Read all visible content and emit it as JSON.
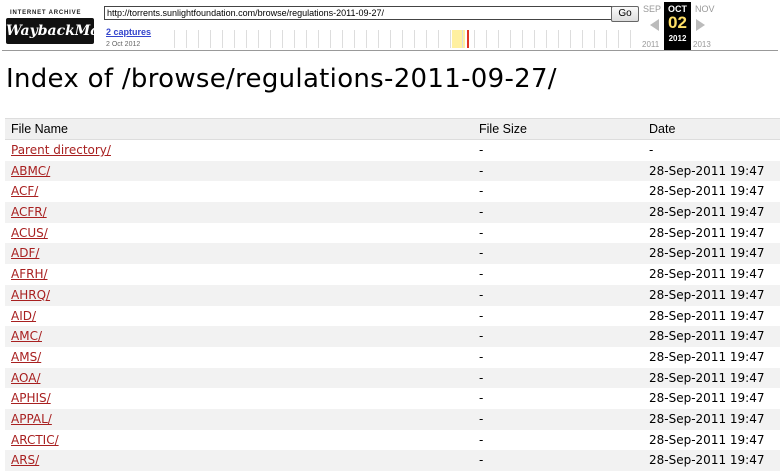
{
  "wayback": {
    "logo_top": "INTERNET ARCHIVE",
    "logo_main": "WaybackMachine",
    "url": "http://torrents.sunlightfoundation.com/browse/regulations-2011-09-27/",
    "go_label": "Go",
    "captures_label": "2 captures",
    "capture_date": "2 Oct 2012",
    "prev_month": "SEP",
    "current_month": "OCT",
    "current_day": "02",
    "current_year": "2012",
    "next_month": "NOV",
    "prev_year": "2011",
    "next_year": "2013"
  },
  "page": {
    "title": "Index of /browse/regulations-2011-09-27/"
  },
  "table": {
    "headers": [
      "File Name",
      "File Size",
      "Date"
    ],
    "rows": [
      {
        "name": "Parent directory/",
        "size": "-",
        "date": "-"
      },
      {
        "name": "ABMC/",
        "size": "-",
        "date": "28-Sep-2011 19:47"
      },
      {
        "name": "ACF/",
        "size": "-",
        "date": "28-Sep-2011 19:47"
      },
      {
        "name": "ACFR/",
        "size": "-",
        "date": "28-Sep-2011 19:47"
      },
      {
        "name": "ACUS/",
        "size": "-",
        "date": "28-Sep-2011 19:47"
      },
      {
        "name": "ADF/",
        "size": "-",
        "date": "28-Sep-2011 19:47"
      },
      {
        "name": "AFRH/",
        "size": "-",
        "date": "28-Sep-2011 19:47"
      },
      {
        "name": "AHRQ/",
        "size": "-",
        "date": "28-Sep-2011 19:47"
      },
      {
        "name": "AID/",
        "size": "-",
        "date": "28-Sep-2011 19:47"
      },
      {
        "name": "AMC/",
        "size": "-",
        "date": "28-Sep-2011 19:47"
      },
      {
        "name": "AMS/",
        "size": "-",
        "date": "28-Sep-2011 19:47"
      },
      {
        "name": "AOA/",
        "size": "-",
        "date": "28-Sep-2011 19:47"
      },
      {
        "name": "APHIS/",
        "size": "-",
        "date": "28-Sep-2011 19:47"
      },
      {
        "name": "APPAL/",
        "size": "-",
        "date": "28-Sep-2011 19:47"
      },
      {
        "name": "ARCTIC/",
        "size": "-",
        "date": "28-Sep-2011 19:47"
      },
      {
        "name": "ARS/",
        "size": "-",
        "date": "28-Sep-2011 19:47"
      }
    ]
  }
}
